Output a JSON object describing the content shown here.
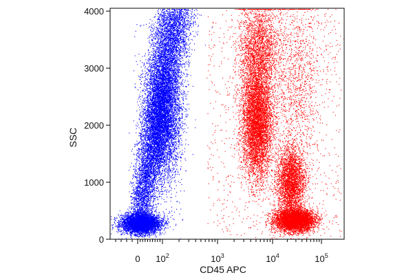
{
  "chart_data": {
    "type": "scatter",
    "title": "",
    "xlabel": "CD45 APC",
    "ylabel": "SSC",
    "x_scale": "biexponential (linear near 0, log above ~10^2)",
    "xlim": [
      -50,
      200000
    ],
    "ylim": [
      0,
      4050
    ],
    "x_ticks": [
      {
        "value": 0,
        "label": "0"
      },
      {
        "value": 100,
        "label": "10",
        "exp": "2"
      },
      {
        "value": 1000,
        "label": "10",
        "exp": "3"
      },
      {
        "value": 10000,
        "label": "10",
        "exp": "4"
      },
      {
        "value": 100000,
        "label": "10",
        "exp": "5"
      }
    ],
    "y_ticks": [
      0,
      1000,
      2000,
      3000,
      4000
    ],
    "grid": false,
    "legend": "none",
    "series": [
      {
        "color": "#0000ff",
        "description_points": [
          {
            "x": 10,
            "y": 300
          },
          {
            "x": 60,
            "y": 1200
          },
          {
            "x": 90,
            "y": 2200
          },
          {
            "x": 140,
            "y": 3200
          },
          {
            "x": 200,
            "y": 3900
          }
        ]
      },
      {
        "color": "#ff0000",
        "description_points": [
          {
            "x": 5500,
            "y": 2200
          },
          {
            "x": 6000,
            "y": 3300
          },
          {
            "x": 22000,
            "y": 1000
          },
          {
            "x": 28000,
            "y": 350
          }
        ]
      }
    ]
  }
}
